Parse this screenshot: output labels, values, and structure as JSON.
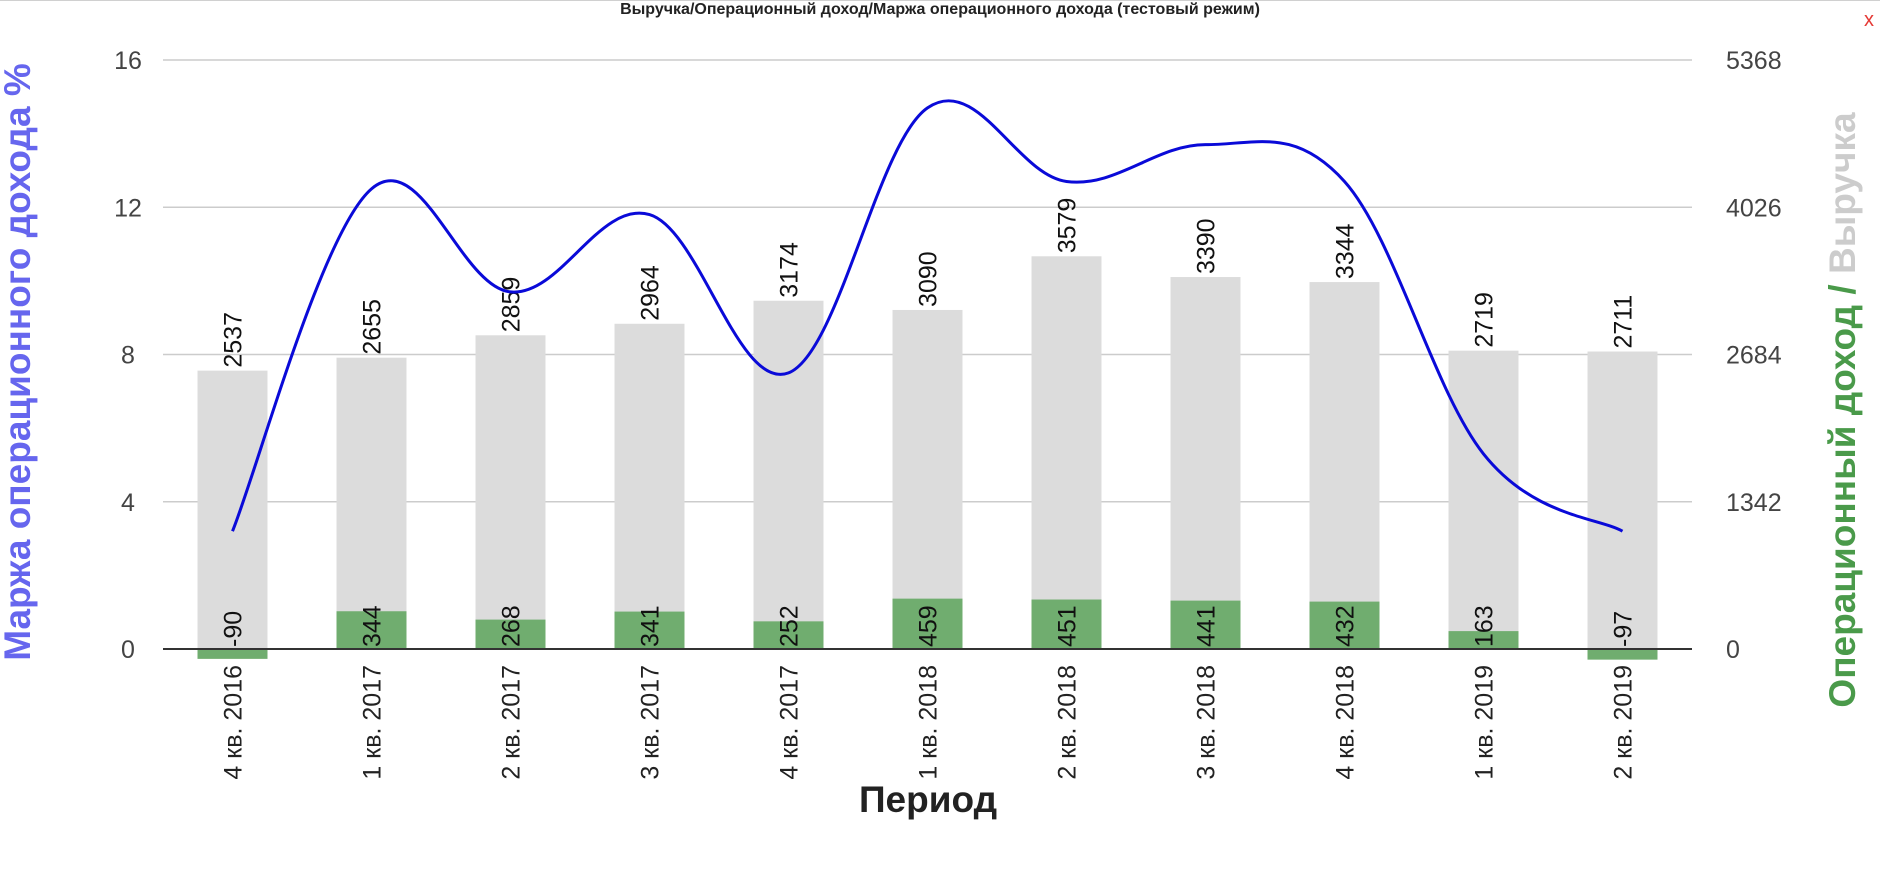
{
  "window": {
    "title": "Выручка/Операционный доход/Маржа операционного дохода (тестовый режим)",
    "close_label": "x"
  },
  "colors": {
    "revenue": "#dcdcdc",
    "operating_income": "#70ad6f",
    "margin_line": "#0a0ad8",
    "left_axis_title": "#6666ee",
    "right_axis_title_green": "#4a9a4a",
    "right_axis_title_gray": "#cccccc",
    "grid": "#cccccc",
    "zero_line": "#333333"
  },
  "chart_data": {
    "type": "bar",
    "title": "Выручка/Операционный доход/Маржа операционного дохода (тестовый режим)",
    "xlabel": "Период",
    "ylabel_left": "Маржа операционного дохода %",
    "ylabel_right_parts": [
      "Операционный доход",
      " / ",
      "Выручка"
    ],
    "categories": [
      "4 кв. 2016",
      "1 кв. 2017",
      "2 кв. 2017",
      "3 кв. 2017",
      "4 кв. 2017",
      "1 кв. 2018",
      "2 кв. 2018",
      "3 кв. 2018",
      "4 кв. 2018",
      "1 кв. 2019",
      "2 кв. 2019"
    ],
    "series": [
      {
        "name": "Выручка",
        "axis": "right",
        "kind": "bar",
        "values": [
          2537,
          2655,
          2859,
          2964,
          3174,
          3090,
          3579,
          3390,
          3344,
          2719,
          2711
        ]
      },
      {
        "name": "Операционный доход",
        "axis": "right",
        "kind": "bar",
        "values": [
          -90,
          344,
          268,
          341,
          252,
          459,
          451,
          441,
          432,
          163,
          -97
        ]
      },
      {
        "name": "Маржа операционного дохода %",
        "axis": "left",
        "kind": "line",
        "values": [
          3.2,
          12.5,
          9.7,
          11.8,
          7.5,
          14.7,
          12.7,
          13.7,
          12.7,
          5.3,
          3.2
        ]
      }
    ],
    "left_axis": {
      "ylim": [
        0,
        16
      ],
      "ticks": [
        "0",
        "4",
        "8",
        "12",
        "16"
      ]
    },
    "right_axis": {
      "ylim": [
        0,
        5368
      ],
      "ticks": [
        "0",
        "1342",
        "2684",
        "4026",
        "5368"
      ]
    },
    "grid": true
  }
}
